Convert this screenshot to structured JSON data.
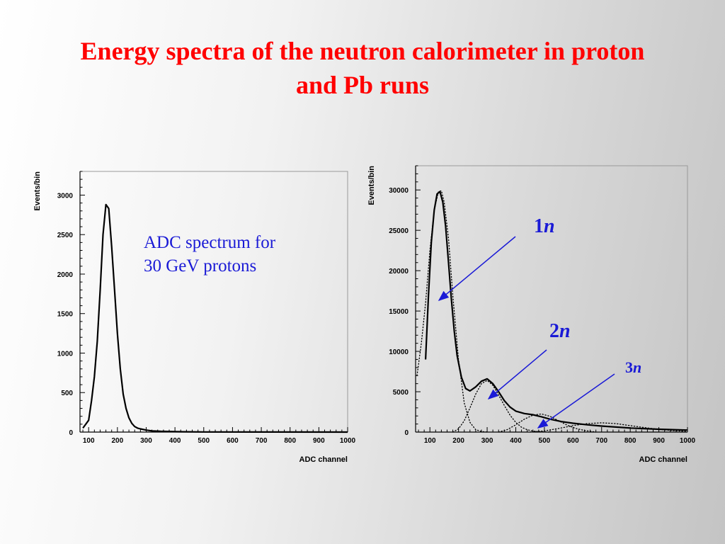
{
  "title_lines": [
    "Energy spectra of the neutron calorimeter in proton",
    "and Pb runs"
  ],
  "annotations": {
    "left_text_lines": [
      "ADC spectrum for",
      "30 GeV protons"
    ],
    "peak_labels": [
      {
        "num": "1",
        "sym": "n"
      },
      {
        "num": "2",
        "sym": "n"
      },
      {
        "num": "3",
        "sym": "n"
      }
    ]
  },
  "colors": {
    "title": "#ff0000",
    "annotation": "#1a1ad6",
    "curve": "#000000"
  },
  "chart_data": [
    {
      "type": "line",
      "xlabel": "ADC channel",
      "ylabel": "Events/bin",
      "xlim": [
        70,
        1000
      ],
      "ylim": [
        0,
        3300
      ],
      "xticks": [
        100,
        200,
        300,
        400,
        500,
        600,
        700,
        800,
        900,
        1000
      ],
      "yticks": [
        0,
        500,
        1000,
        1500,
        2000,
        2500,
        3000
      ],
      "grid": false,
      "series": [
        {
          "style": "solid",
          "x": [
            80,
            100,
            110,
            120,
            130,
            140,
            150,
            160,
            170,
            180,
            190,
            200,
            210,
            220,
            230,
            240,
            250,
            260,
            270,
            280,
            300,
            320,
            350,
            400,
            500,
            700,
            1000
          ],
          "y": [
            50,
            150,
            400,
            700,
            1150,
            1800,
            2500,
            2880,
            2830,
            2350,
            1800,
            1250,
            800,
            480,
            300,
            180,
            110,
            70,
            50,
            40,
            25,
            15,
            10,
            5,
            2,
            1,
            0
          ]
        }
      ]
    },
    {
      "type": "line",
      "xlabel": "ADC channel",
      "ylabel": "Events/bin",
      "xlim": [
        50,
        1000
      ],
      "ylim": [
        0,
        33000
      ],
      "xticks": [
        100,
        200,
        300,
        400,
        500,
        600,
        700,
        800,
        900,
        1000
      ],
      "yticks": [
        0,
        5000,
        10000,
        15000,
        20000,
        25000,
        30000
      ],
      "grid": false,
      "series": [
        {
          "style": "solid",
          "x": [
            85,
            95,
            105,
            115,
            125,
            135,
            145,
            155,
            165,
            175,
            185,
            195,
            210,
            225,
            240,
            260,
            280,
            300,
            320,
            340,
            360,
            380,
            400,
            430,
            460,
            490,
            520,
            560,
            600,
            650,
            700,
            800,
            900,
            1000
          ],
          "y": [
            9000,
            17000,
            23500,
            27500,
            29500,
            29800,
            28500,
            25500,
            21000,
            16500,
            12500,
            9500,
            6800,
            5400,
            5100,
            5600,
            6300,
            6600,
            6000,
            5000,
            3900,
            3100,
            2600,
            2300,
            2150,
            1900,
            1600,
            1300,
            1100,
            900,
            750,
            500,
            350,
            250
          ]
        },
        {
          "style": "dotted",
          "x": [
            55,
            70,
            85,
            100,
            115,
            130,
            140,
            150,
            165,
            180,
            200,
            220,
            240,
            260,
            280,
            300
          ],
          "y": [
            7000,
            11000,
            16000,
            22500,
            27500,
            29800,
            29900,
            28500,
            24000,
            17000,
            9000,
            3600,
            1200,
            300,
            80,
            0
          ]
        },
        {
          "style": "dotted",
          "x": [
            180,
            200,
            220,
            240,
            260,
            280,
            300,
            320,
            340,
            360,
            380,
            400,
            420,
            440,
            460,
            480,
            500,
            520
          ],
          "y": [
            0,
            400,
            1400,
            3000,
            4700,
            6000,
            6400,
            5800,
            4600,
            3300,
            2100,
            1200,
            600,
            300,
            120,
            50,
            15,
            0
          ]
        },
        {
          "style": "dotted",
          "x": [
            340,
            370,
            400,
            430,
            460,
            490,
            520,
            550,
            580,
            610,
            640,
            680
          ],
          "y": [
            0,
            300,
            900,
            1600,
            2100,
            2250,
            1950,
            1400,
            850,
            450,
            200,
            0
          ]
        },
        {
          "style": "dotted",
          "x": [
            450,
            500,
            550,
            600,
            650,
            700,
            750,
            800,
            850,
            900,
            950,
            1000
          ],
          "y": [
            0,
            150,
            450,
            800,
            1050,
            1150,
            1050,
            800,
            550,
            330,
            180,
            80
          ]
        }
      ]
    }
  ]
}
